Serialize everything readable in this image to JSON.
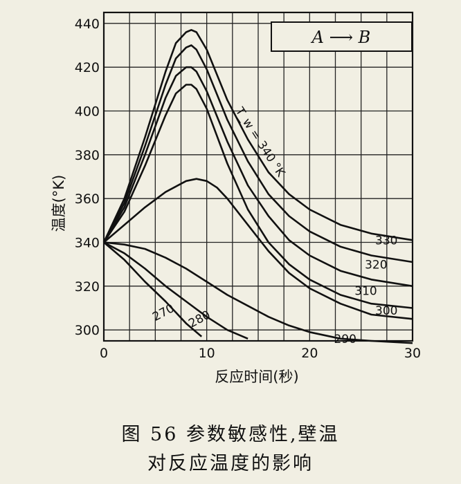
{
  "chart_data": {
    "type": "line",
    "title": "",
    "xlabel": "反应时间(秒)",
    "ylabel": "温度(°K)",
    "xlim": [
      0,
      30
    ],
    "ylim": [
      295,
      445
    ],
    "xticks": [
      0,
      10,
      20,
      30
    ],
    "yticks": [
      300,
      320,
      340,
      360,
      380,
      400,
      420,
      440
    ],
    "grid": true,
    "reaction_label": "A ⟶ B",
    "parameter_label": "T_w = 340 °K",
    "series": [
      {
        "name": "340",
        "x": [
          0,
          2,
          4,
          6,
          7,
          8,
          8.5,
          9,
          10,
          12,
          14,
          16,
          18,
          20,
          23,
          26,
          30
        ],
        "y": [
          340,
          360,
          388,
          418,
          431,
          436,
          437,
          436,
          428,
          405,
          387,
          372,
          362,
          355,
          348,
          344,
          341
        ]
      },
      {
        "name": "330",
        "x": [
          0,
          2,
          4,
          6,
          7,
          8,
          8.5,
          9,
          10,
          12,
          14,
          16,
          18,
          20,
          23,
          26,
          30
        ],
        "y": [
          340,
          358,
          384,
          412,
          424,
          429,
          430,
          428,
          419,
          396,
          377,
          362,
          352,
          345,
          338,
          334,
          331
        ]
      },
      {
        "name": "320",
        "x": [
          0,
          2,
          4,
          6,
          7,
          8,
          8.5,
          9,
          10,
          12,
          14,
          16,
          18,
          20,
          23,
          26,
          30
        ],
        "y": [
          340,
          356,
          380,
          406,
          416,
          420,
          420,
          418,
          409,
          386,
          366,
          352,
          341,
          334,
          327,
          323,
          320
        ]
      },
      {
        "name": "310",
        "x": [
          0,
          2,
          4,
          6,
          7,
          8,
          8.5,
          9,
          10,
          12,
          14,
          16,
          18,
          20,
          23,
          26,
          30
        ],
        "y": [
          340,
          354,
          375,
          398,
          408,
          412,
          412,
          410,
          401,
          376,
          355,
          340,
          330,
          323,
          316,
          312,
          310
        ]
      },
      {
        "name": "300",
        "x": [
          0,
          2,
          4,
          6,
          8,
          9,
          10,
          11,
          12,
          14,
          16,
          18,
          20,
          23,
          26,
          30
        ],
        "y": [
          340,
          348,
          356,
          363,
          368,
          369,
          368,
          365,
          360,
          348,
          336,
          326,
          319,
          312,
          307,
          305
        ]
      },
      {
        "name": "290",
        "x": [
          0,
          2,
          4,
          6,
          8,
          10,
          12,
          14,
          16,
          18,
          20,
          23,
          26,
          30
        ],
        "y": [
          340,
          339,
          337,
          333,
          328,
          322,
          316,
          311,
          306,
          302,
          299,
          296,
          295,
          294
        ]
      },
      {
        "name": "280",
        "x": [
          0,
          2,
          4,
          6,
          8,
          10,
          12,
          14
        ],
        "y": [
          340,
          335,
          328,
          320,
          313,
          306,
          300,
          296
        ]
      },
      {
        "name": "270",
        "x": [
          0,
          2,
          4,
          6,
          8,
          9.5
        ],
        "y": [
          340,
          332,
          322,
          313,
          303,
          297
        ]
      }
    ]
  },
  "caption": {
    "line1": "图 56  参数敏感性,壁温",
    "line2": "对反应温度的影响"
  }
}
